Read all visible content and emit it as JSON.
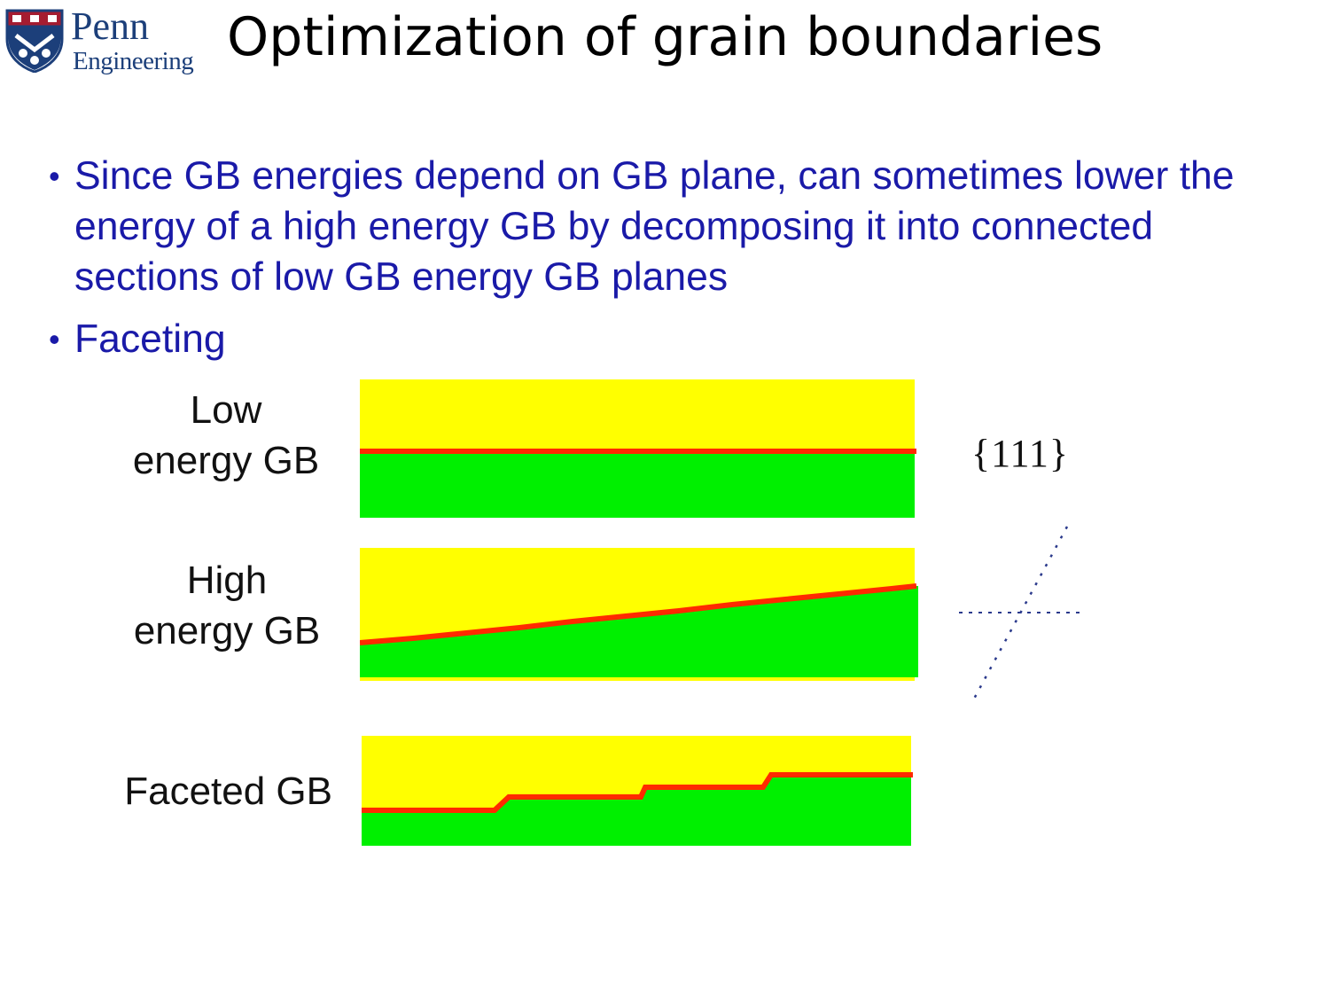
{
  "logo": {
    "name": "Penn",
    "sub": "Engineering"
  },
  "slide": {
    "title": "Optimization of grain boundaries"
  },
  "bullets": [
    {
      "marker": "•",
      "text": "Since GB energies depend on GB plane, can sometimes lower the energy of a high energy GB by decomposing it into connected sections of low GB energy GB planes"
    },
    {
      "marker": "•",
      "text": "Faceting"
    }
  ],
  "figure": {
    "rows": [
      {
        "label_line1": "Low",
        "label_line2": "energy GB"
      },
      {
        "label_line1": "High",
        "label_line2": "energy GB"
      },
      {
        "label": "Faceted GB"
      }
    ],
    "miller_label": "{111}",
    "colors": {
      "upper_grain": "#ffff00",
      "lower_grain": "#00f000",
      "boundary": "#ff2a00",
      "text_blue": "#1a1aa8",
      "axis_dots": "#2b3a8c"
    }
  }
}
